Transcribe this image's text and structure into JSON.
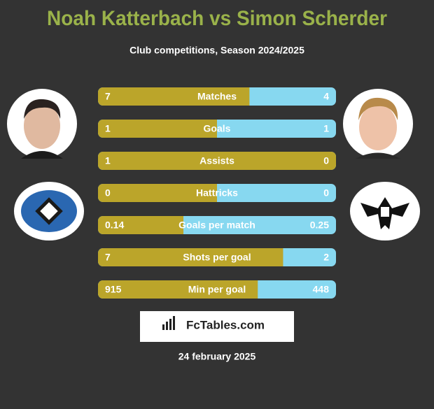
{
  "header": {
    "title": "Noah Katterbach vs Simon Scherder",
    "subtitle": "Club competitions, Season 2024/2025"
  },
  "rows": [
    {
      "label": "Matches",
      "left": 7,
      "right": 4
    },
    {
      "label": "Goals",
      "left": 1,
      "right": 1
    },
    {
      "label": "Assists",
      "left": 1,
      "right": 0
    },
    {
      "label": "Hattricks",
      "left": 0,
      "right": 0
    },
    {
      "label": "Goals per match",
      "left": 0.14,
      "right": 0.25
    },
    {
      "label": "Shots per goal",
      "left": 7,
      "right": 2
    },
    {
      "label": "Min per goal",
      "left": 915,
      "right": 448
    }
  ],
  "footer": {
    "brand": "FcTables.com",
    "date": "24 february 2025"
  }
}
